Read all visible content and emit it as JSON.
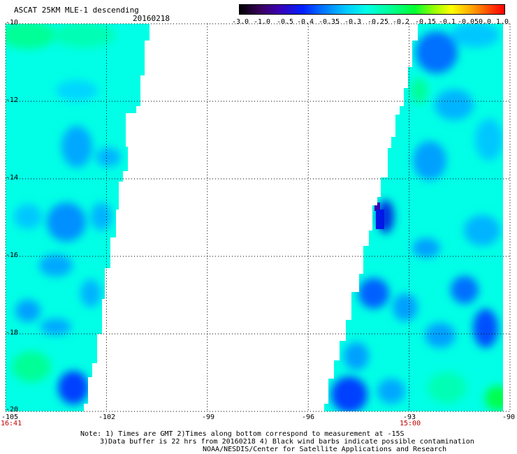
{
  "header": {
    "title": "ASCAT 25KM MLE-1 descending",
    "date": "20160218"
  },
  "colorbar": {
    "ticks": [
      "-3.0",
      "-1.0",
      "-0.5",
      "-0.4",
      "-0.35",
      "-0.3",
      "-0.25",
      "-0.2",
      "-0.15",
      "-0.1",
      "-0.05",
      "0.0",
      "1.0"
    ]
  },
  "map": {
    "lat_labels": [
      "-10",
      "-12",
      "-14",
      "-16",
      "-18",
      "-20"
    ],
    "lon_labels": [
      "-105",
      "-102",
      "-99",
      "-96",
      "-93",
      "-90"
    ],
    "lat_range": [
      -20,
      -10
    ],
    "lon_range": [
      -105,
      -90
    ],
    "grid": "dotted",
    "left_swath_time": "16:41",
    "right_swath_time": "15:00",
    "colors": {
      "background": "#ffffff",
      "dominant_field": "#00ffe6",
      "low_values": "#0040ff",
      "high_values": "#00ff60"
    }
  },
  "notes": {
    "line1": "Note: 1) Times are GMT 2)Times along bottom correspond to measurement at -15S",
    "line2": "3)Data buffer is 22 hrs from 20160218 4) Black wind barbs indicate possible contamination",
    "line3": "NOAA/NESDIS/Center for Satellite Applications and Research"
  }
}
